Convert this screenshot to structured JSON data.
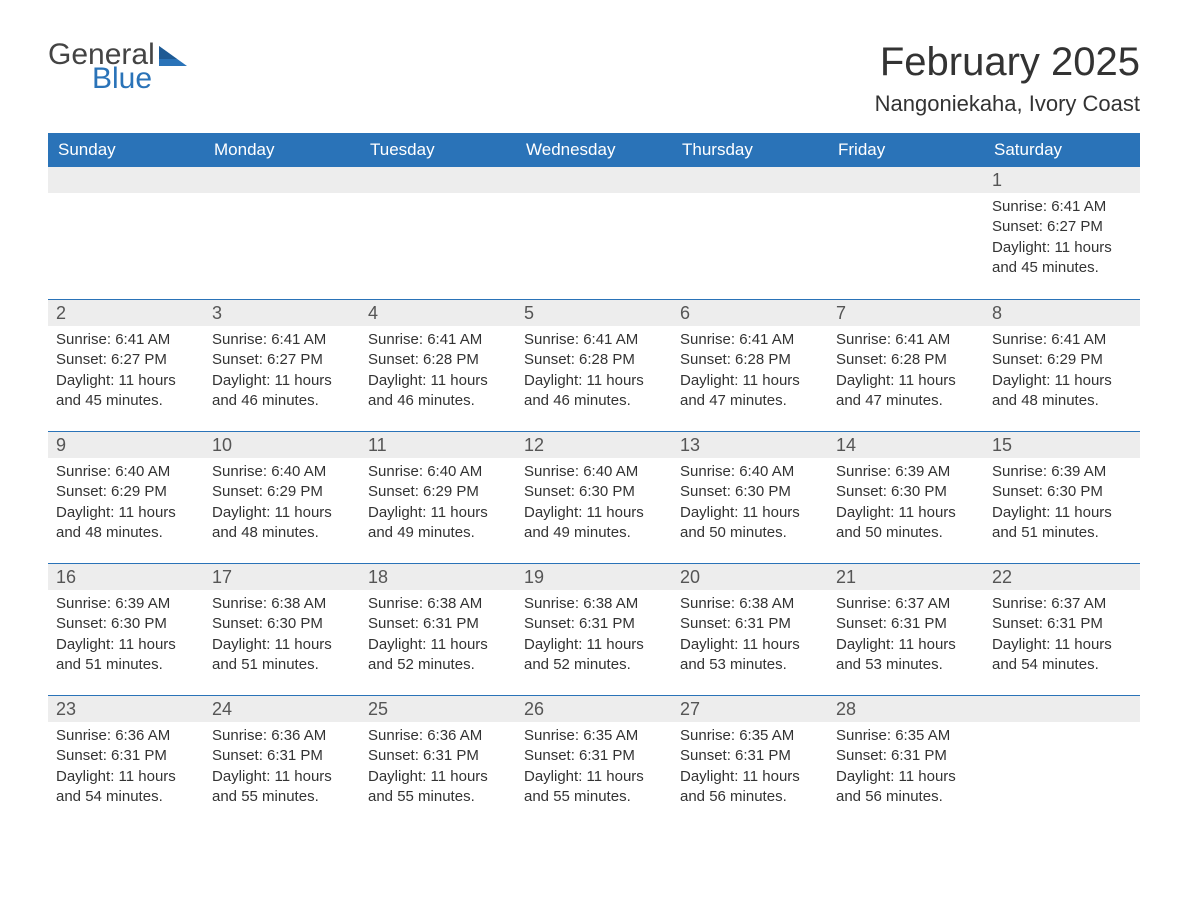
{
  "logo": {
    "word1": "General",
    "word2": "Blue"
  },
  "title": "February 2025",
  "location": "Nangoniekaha, Ivory Coast",
  "styling": {
    "header_bg": "#2a73b8",
    "header_text": "#ffffff",
    "daynum_bg": "#ededed",
    "border_color": "#2a73b8",
    "body_text": "#333333",
    "title_fontsize": 40,
    "location_fontsize": 22,
    "weekday_fontsize": 17,
    "daynum_fontsize": 18,
    "content_fontsize": 15,
    "columns": 7
  },
  "weekdays": [
    "Sunday",
    "Monday",
    "Tuesday",
    "Wednesday",
    "Thursday",
    "Friday",
    "Saturday"
  ],
  "weeks": [
    [
      {
        "n": "",
        "sunrise": "",
        "sunset": "",
        "daylight": ""
      },
      {
        "n": "",
        "sunrise": "",
        "sunset": "",
        "daylight": ""
      },
      {
        "n": "",
        "sunrise": "",
        "sunset": "",
        "daylight": ""
      },
      {
        "n": "",
        "sunrise": "",
        "sunset": "",
        "daylight": ""
      },
      {
        "n": "",
        "sunrise": "",
        "sunset": "",
        "daylight": ""
      },
      {
        "n": "",
        "sunrise": "",
        "sunset": "",
        "daylight": ""
      },
      {
        "n": "1",
        "sunrise": "Sunrise: 6:41 AM",
        "sunset": "Sunset: 6:27 PM",
        "daylight": "Daylight: 11 hours and 45 minutes."
      }
    ],
    [
      {
        "n": "2",
        "sunrise": "Sunrise: 6:41 AM",
        "sunset": "Sunset: 6:27 PM",
        "daylight": "Daylight: 11 hours and 45 minutes."
      },
      {
        "n": "3",
        "sunrise": "Sunrise: 6:41 AM",
        "sunset": "Sunset: 6:27 PM",
        "daylight": "Daylight: 11 hours and 46 minutes."
      },
      {
        "n": "4",
        "sunrise": "Sunrise: 6:41 AM",
        "sunset": "Sunset: 6:28 PM",
        "daylight": "Daylight: 11 hours and 46 minutes."
      },
      {
        "n": "5",
        "sunrise": "Sunrise: 6:41 AM",
        "sunset": "Sunset: 6:28 PM",
        "daylight": "Daylight: 11 hours and 46 minutes."
      },
      {
        "n": "6",
        "sunrise": "Sunrise: 6:41 AM",
        "sunset": "Sunset: 6:28 PM",
        "daylight": "Daylight: 11 hours and 47 minutes."
      },
      {
        "n": "7",
        "sunrise": "Sunrise: 6:41 AM",
        "sunset": "Sunset: 6:28 PM",
        "daylight": "Daylight: 11 hours and 47 minutes."
      },
      {
        "n": "8",
        "sunrise": "Sunrise: 6:41 AM",
        "sunset": "Sunset: 6:29 PM",
        "daylight": "Daylight: 11 hours and 48 minutes."
      }
    ],
    [
      {
        "n": "9",
        "sunrise": "Sunrise: 6:40 AM",
        "sunset": "Sunset: 6:29 PM",
        "daylight": "Daylight: 11 hours and 48 minutes."
      },
      {
        "n": "10",
        "sunrise": "Sunrise: 6:40 AM",
        "sunset": "Sunset: 6:29 PM",
        "daylight": "Daylight: 11 hours and 48 minutes."
      },
      {
        "n": "11",
        "sunrise": "Sunrise: 6:40 AM",
        "sunset": "Sunset: 6:29 PM",
        "daylight": "Daylight: 11 hours and 49 minutes."
      },
      {
        "n": "12",
        "sunrise": "Sunrise: 6:40 AM",
        "sunset": "Sunset: 6:30 PM",
        "daylight": "Daylight: 11 hours and 49 minutes."
      },
      {
        "n": "13",
        "sunrise": "Sunrise: 6:40 AM",
        "sunset": "Sunset: 6:30 PM",
        "daylight": "Daylight: 11 hours and 50 minutes."
      },
      {
        "n": "14",
        "sunrise": "Sunrise: 6:39 AM",
        "sunset": "Sunset: 6:30 PM",
        "daylight": "Daylight: 11 hours and 50 minutes."
      },
      {
        "n": "15",
        "sunrise": "Sunrise: 6:39 AM",
        "sunset": "Sunset: 6:30 PM",
        "daylight": "Daylight: 11 hours and 51 minutes."
      }
    ],
    [
      {
        "n": "16",
        "sunrise": "Sunrise: 6:39 AM",
        "sunset": "Sunset: 6:30 PM",
        "daylight": "Daylight: 11 hours and 51 minutes."
      },
      {
        "n": "17",
        "sunrise": "Sunrise: 6:38 AM",
        "sunset": "Sunset: 6:30 PM",
        "daylight": "Daylight: 11 hours and 51 minutes."
      },
      {
        "n": "18",
        "sunrise": "Sunrise: 6:38 AM",
        "sunset": "Sunset: 6:31 PM",
        "daylight": "Daylight: 11 hours and 52 minutes."
      },
      {
        "n": "19",
        "sunrise": "Sunrise: 6:38 AM",
        "sunset": "Sunset: 6:31 PM",
        "daylight": "Daylight: 11 hours and 52 minutes."
      },
      {
        "n": "20",
        "sunrise": "Sunrise: 6:38 AM",
        "sunset": "Sunset: 6:31 PM",
        "daylight": "Daylight: 11 hours and 53 minutes."
      },
      {
        "n": "21",
        "sunrise": "Sunrise: 6:37 AM",
        "sunset": "Sunset: 6:31 PM",
        "daylight": "Daylight: 11 hours and 53 minutes."
      },
      {
        "n": "22",
        "sunrise": "Sunrise: 6:37 AM",
        "sunset": "Sunset: 6:31 PM",
        "daylight": "Daylight: 11 hours and 54 minutes."
      }
    ],
    [
      {
        "n": "23",
        "sunrise": "Sunrise: 6:36 AM",
        "sunset": "Sunset: 6:31 PM",
        "daylight": "Daylight: 11 hours and 54 minutes."
      },
      {
        "n": "24",
        "sunrise": "Sunrise: 6:36 AM",
        "sunset": "Sunset: 6:31 PM",
        "daylight": "Daylight: 11 hours and 55 minutes."
      },
      {
        "n": "25",
        "sunrise": "Sunrise: 6:36 AM",
        "sunset": "Sunset: 6:31 PM",
        "daylight": "Daylight: 11 hours and 55 minutes."
      },
      {
        "n": "26",
        "sunrise": "Sunrise: 6:35 AM",
        "sunset": "Sunset: 6:31 PM",
        "daylight": "Daylight: 11 hours and 55 minutes."
      },
      {
        "n": "27",
        "sunrise": "Sunrise: 6:35 AM",
        "sunset": "Sunset: 6:31 PM",
        "daylight": "Daylight: 11 hours and 56 minutes."
      },
      {
        "n": "28",
        "sunrise": "Sunrise: 6:35 AM",
        "sunset": "Sunset: 6:31 PM",
        "daylight": "Daylight: 11 hours and 56 minutes."
      },
      {
        "n": "",
        "sunrise": "",
        "sunset": "",
        "daylight": ""
      }
    ]
  ]
}
